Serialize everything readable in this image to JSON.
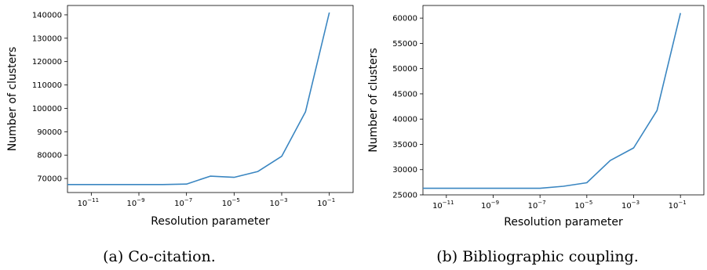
{
  "charts": [
    {
      "caption": "(a) Co-citation.",
      "chart_data": {
        "type": "line",
        "xscale": "log",
        "xlabel": "Resolution parameter",
        "ylabel": "Number of clusters",
        "xlim": [
          1e-12,
          1
        ],
        "xtick_exponents": [
          -11,
          -9,
          -7,
          -5,
          -3,
          -1
        ],
        "ylim": [
          64000,
          144000
        ],
        "yticks": [
          70000,
          80000,
          90000,
          100000,
          110000,
          120000,
          130000,
          140000
        ],
        "series": [
          {
            "x": [
              1e-12,
              1e-11,
              1e-10,
              1e-09,
              1e-08,
              1e-07,
              1e-06,
              1e-05,
              0.0001,
              0.001,
              0.01,
              0.1
            ],
            "y": [
              67400,
              67400,
              67400,
              67400,
              67400,
              67600,
              71000,
              70500,
              73000,
              79500,
              98500,
              141000
            ]
          }
        ],
        "grid": false,
        "line_color": "#3a86c1"
      }
    },
    {
      "caption": "(b) Bibliographic coupling.",
      "chart_data": {
        "type": "line",
        "xscale": "log",
        "xlabel": "Resolution parameter",
        "ylabel": "Number of clusters",
        "xlim": [
          1e-12,
          1
        ],
        "xtick_exponents": [
          -11,
          -9,
          -7,
          -5,
          -3,
          -1
        ],
        "ylim": [
          25000,
          62500
        ],
        "yticks": [
          25000,
          30000,
          35000,
          40000,
          45000,
          50000,
          55000,
          60000
        ],
        "series": [
          {
            "x": [
              1e-12,
              1e-11,
              1e-10,
              1e-09,
              1e-08,
              1e-07,
              1e-06,
              1e-05,
              0.0001,
              0.001,
              0.01,
              0.1
            ],
            "y": [
              26300,
              26300,
              26300,
              26300,
              26300,
              26300,
              26700,
              27400,
              31800,
              34300,
              41700,
              61000
            ]
          }
        ],
        "grid": false,
        "line_color": "#3a86c1"
      }
    }
  ]
}
